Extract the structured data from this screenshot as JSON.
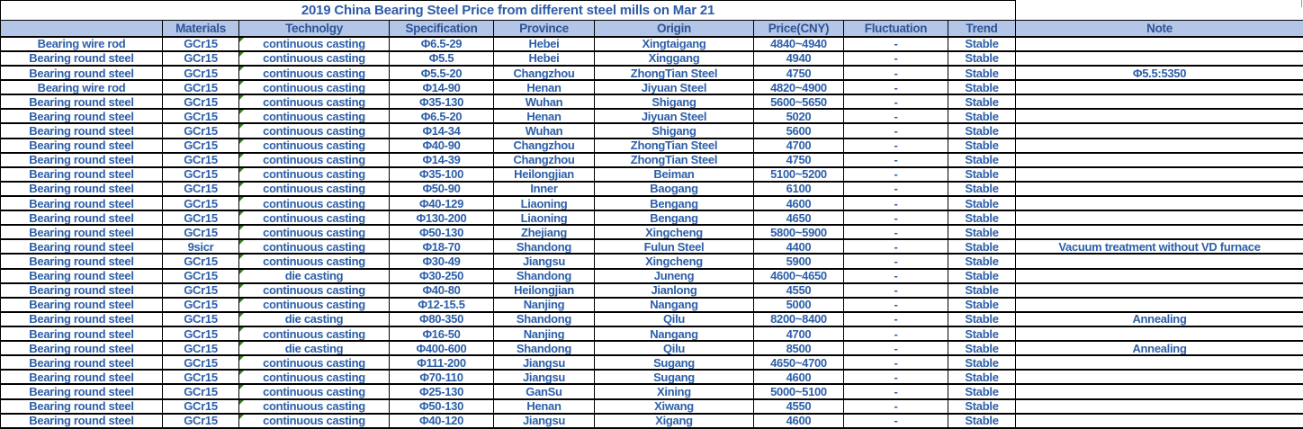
{
  "title": "2019 China Bearing Steel Price from different steel mills on Mar 21",
  "table": {
    "columns": [
      "",
      "Materials",
      "Technolgy",
      "Specification",
      "Province",
      "Origin",
      "Price(CNY)",
      "Fluctuation",
      "Trend",
      "Note"
    ],
    "rows": [
      [
        "Bearing wire rod",
        "GCr15",
        "continuous casting",
        "Φ6.5-29",
        "Hebei",
        "Xingtaigang",
        "4840~4940",
        "-",
        "Stable",
        ""
      ],
      [
        "Bearing round steel",
        "GCr15",
        "continuous casting",
        "Φ5.5",
        "Hebei",
        "Xinggang",
        "4940",
        "-",
        "Stable",
        ""
      ],
      [
        "Bearing round steel",
        "GCr15",
        "continuous casting",
        "Φ5.5-20",
        "Changzhou",
        "ZhongTian Steel",
        "4750",
        "-",
        "Stable",
        "Φ5.5:5350"
      ],
      [
        "Bearing wire rod",
        "GCr15",
        "continuous casting",
        "Φ14-90",
        "Henan",
        "Jiyuan Steel",
        "4820~4900",
        "-",
        "Stable",
        ""
      ],
      [
        "Bearing round steel",
        "GCr15",
        "continuous casting",
        "Φ35-130",
        "Wuhan",
        "Shigang",
        "5600~5650",
        "-",
        "Stable",
        ""
      ],
      [
        "Bearing round steel",
        "GCr15",
        "continuous casting",
        "Φ6.5-20",
        "Henan",
        "Jiyuan Steel",
        "5020",
        "-",
        "Stable",
        ""
      ],
      [
        "Bearing round steel",
        "GCr15",
        "continuous casting",
        "Φ14-34",
        "Wuhan",
        "Shigang",
        "5600",
        "-",
        "Stable",
        ""
      ],
      [
        "Bearing round steel",
        "GCr15",
        "continuous casting",
        "Φ40-90",
        "Changzhou",
        "ZhongTian Steel",
        "4700",
        "-",
        "Stable",
        ""
      ],
      [
        "Bearing round steel",
        "GCr15",
        "continuous casting",
        "Φ14-39",
        "Changzhou",
        "ZhongTian Steel",
        "4750",
        "-",
        "Stable",
        ""
      ],
      [
        "Bearing round steel",
        "GCr15",
        "continuous casting",
        "Φ35-100",
        "Heilongjian",
        "Beiman",
        "5100~5200",
        "-",
        "Stable",
        ""
      ],
      [
        "Bearing round steel",
        "GCr15",
        "continuous casting",
        "Φ50-90",
        "Inner",
        "Baogang",
        "6100",
        "-",
        "Stable",
        ""
      ],
      [
        "Bearing round steel",
        "GCr15",
        "continuous casting",
        "Φ40-129",
        "Liaoning",
        "Bengang",
        "4600",
        "-",
        "Stable",
        ""
      ],
      [
        "Bearing round steel",
        "GCr15",
        "continuous casting",
        "Φ130-200",
        "Liaoning",
        "Bengang",
        "4650",
        "-",
        "Stable",
        ""
      ],
      [
        "Bearing round steel",
        "GCr15",
        "continuous casting",
        "Φ50-130",
        "Zhejiang",
        "Xingcheng",
        "5800~5900",
        "-",
        "Stable",
        ""
      ],
      [
        "Bearing round steel",
        "9sicr",
        "continuous casting",
        "Φ18-70",
        "Shandong",
        "Fulun Steel",
        "4400",
        "-",
        "Stable",
        "Vacuum treatment without VD furnace"
      ],
      [
        "Bearing round steel",
        "GCr15",
        "continuous casting",
        "Φ30-49",
        "Jiangsu",
        "Xingcheng",
        "5900",
        "-",
        "Stable",
        ""
      ],
      [
        "Bearing round steel",
        "GCr15",
        "die casting",
        "Φ30-250",
        "Shandong",
        "Juneng",
        "4600~4650",
        "-",
        "Stable",
        ""
      ],
      [
        "Bearing round steel",
        "GCr15",
        "continuous casting",
        "Φ40-80",
        "Heilongjian",
        "Jianlong",
        "4550",
        "-",
        "Stable",
        ""
      ],
      [
        "Bearing round steel",
        "GCr15",
        "continuous casting",
        "Φ12-15.5",
        "Nanjing",
        "Nangang",
        "5000",
        "-",
        "Stable",
        ""
      ],
      [
        "Bearing round steel",
        "GCr15",
        "die casting",
        "Φ80-350",
        "Shandong",
        "Qilu",
        "8200~8400",
        "-",
        "Stable",
        "Annealing"
      ],
      [
        "Bearing round steel",
        "GCr15",
        "continuous casting",
        "Φ16-50",
        "Nanjing",
        "Nangang",
        "4700",
        "-",
        "Stable",
        ""
      ],
      [
        "Bearing round steel",
        "GCr15",
        "die casting",
        "Φ400-600",
        "Shandong",
        "Qilu",
        "8500",
        "-",
        "Stable",
        "Annealing"
      ],
      [
        "Bearing round steel",
        "GCr15",
        "continuous casting",
        "Φ111-200",
        "Jiangsu",
        "Sugang",
        "4650~4700",
        "-",
        "Stable",
        ""
      ],
      [
        "Bearing round steel",
        "GCr15",
        "continuous casting",
        "Φ70-110",
        "Jiangsu",
        "Sugang",
        "4600",
        "-",
        "Stable",
        ""
      ],
      [
        "Bearing round steel",
        "GCr15",
        "continuous casting",
        "Φ25-130",
        "GanSu",
        "Xining",
        "5000~5100",
        "-",
        "Stable",
        ""
      ],
      [
        "Bearing round steel",
        "GCr15",
        "continuous casting",
        "Φ50-130",
        "Henan",
        "Xiwang",
        "4550",
        "-",
        "Stable",
        ""
      ],
      [
        "Bearing round steel",
        "GCr15",
        "continuous casting",
        "Φ40-120",
        "Jiangsu",
        "Xigang",
        "4600",
        "-",
        "Stable",
        ""
      ]
    ]
  },
  "icons": {
    "error_indicator": "excel-cell-error-triangle"
  },
  "colors": {
    "header_bg": "#B4C6E7",
    "text_blue": "#2D5FA9",
    "header_text_blue": "#2F5496",
    "border_black": "#000000",
    "error_indicator_green": "#3A7D1E"
  }
}
